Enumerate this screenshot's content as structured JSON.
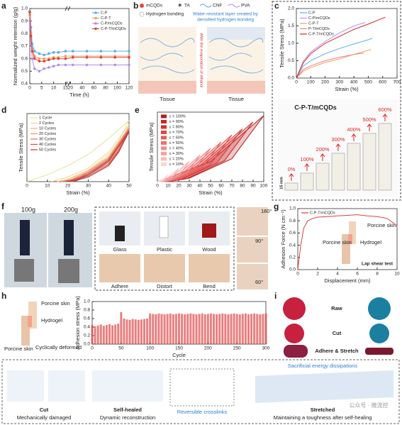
{
  "chart_data": [
    {
      "type": "line",
      "xlabel": "Time (h)",
      "ylabel": "Normalized weight retention (g/g)",
      "markers": true,
      "legend": "upper right",
      "xbreak": [
        15,
        20
      ],
      "x": [
        0,
        0.5,
        1,
        2,
        4,
        6,
        8,
        10,
        12,
        15,
        24,
        48,
        72,
        96,
        120
      ],
      "xlim": [
        0,
        120
      ],
      "xticks": [
        0,
        5,
        10,
        15,
        20,
        40,
        60,
        80,
        100,
        120
      ],
      "ylim": [
        0.4,
        1.0
      ],
      "yticks": [
        0.4,
        0.5,
        0.6,
        0.7,
        0.8,
        0.9,
        {
          "value": 1,
          "label": "1.0"
        }
      ],
      "series": [
        {
          "name": "C-P",
          "color": "#5aaee8",
          "values": [
            0.98,
            0.85,
            0.72,
            0.66,
            0.64,
            0.63,
            0.64,
            0.65,
            0.65,
            0.66,
            0.66,
            0.66,
            0.66,
            0.66,
            0.66
          ]
        },
        {
          "name": "C-P-T",
          "color": "#f0a060",
          "values": [
            0.95,
            0.8,
            0.68,
            0.62,
            0.6,
            0.6,
            0.6,
            0.61,
            0.61,
            0.62,
            0.62,
            0.62,
            0.62,
            0.62,
            0.62
          ]
        },
        {
          "name": "C-P/mCQDs",
          "color": "#b38ee6",
          "values": [
            0.9,
            0.72,
            0.6,
            0.52,
            0.5,
            0.52,
            0.53,
            0.54,
            0.55,
            0.55,
            0.55,
            0.55,
            0.55,
            0.55,
            0.55
          ]
        },
        {
          "name": "C-P-T/mCQDs",
          "color": "#e0403a",
          "values": [
            0.97,
            0.78,
            0.66,
            0.6,
            0.58,
            0.58,
            0.59,
            0.6,
            0.6,
            0.6,
            0.61,
            0.61,
            0.61,
            0.61,
            0.61
          ]
        }
      ]
    },
    {
      "type": "line",
      "xlabel": "Strain (%)",
      "ylabel": "Tensile Stress (MPa)",
      "legend": "upper left",
      "xlim": [
        0,
        700
      ],
      "xticks": [
        0,
        100,
        200,
        300,
        400,
        500,
        600,
        700
      ],
      "ylim": [
        0,
        2
      ],
      "yticks": [
        {
          "value": 0,
          "label": "0.0"
        },
        0.5,
        {
          "value": 1,
          "label": "1.0"
        },
        1.5,
        {
          "value": 2,
          "label": "2.0"
        }
      ],
      "series": [
        {
          "name": "C-P",
          "color": "#5aaee8",
          "x": [
            0,
            50,
            100,
            200,
            300,
            400,
            500,
            530
          ],
          "values": [
            0,
            0.35,
            0.5,
            0.7,
            0.85,
            0.98,
            1.1,
            1.15
          ]
        },
        {
          "name": "C-P/mCQDs",
          "color": "#c08be6",
          "x": [
            0,
            50,
            100,
            200,
            300,
            400,
            480
          ],
          "values": [
            0,
            0.5,
            0.75,
            1.05,
            1.3,
            1.5,
            1.6
          ]
        },
        {
          "name": "C-P-T",
          "color": "#f0a060",
          "x": [
            0,
            50,
            100,
            200,
            300,
            400,
            500,
            520
          ],
          "values": [
            0,
            0.2,
            0.3,
            0.45,
            0.55,
            0.68,
            0.8,
            0.82
          ]
        },
        {
          "name": "P-T/mCQDs",
          "color": "#f08080",
          "x": [
            0,
            50,
            100,
            200,
            300,
            400,
            470
          ],
          "values": [
            0,
            0.25,
            0.35,
            0.5,
            0.6,
            0.68,
            0.72
          ]
        },
        {
          "name": "C-P-T/mCQDs",
          "color": "#d62828",
          "x": [
            0,
            50,
            100,
            200,
            300,
            400,
            500,
            600,
            620
          ],
          "values": [
            0,
            0.45,
            0.7,
            1.0,
            1.2,
            1.4,
            1.55,
            1.72,
            1.75
          ]
        }
      ]
    },
    {
      "type": "line",
      "xlabel": "Strain (%)",
      "ylabel": "Tensile Stress (MPa)",
      "legend": "upper left",
      "xlim": [
        0,
        50
      ],
      "xticks": [
        0,
        10,
        20,
        30,
        40,
        50
      ],
      "ylim": [
        0,
        0.3
      ],
      "series": [
        {
          "name": "1 Cycle",
          "color": "#e6e29a",
          "x": [
            0,
            10,
            20,
            30,
            40,
            50,
            45,
            40,
            30,
            20,
            15
          ],
          "values": [
            0,
            0.03,
            0.07,
            0.12,
            0.19,
            0.27,
            0.18,
            0.12,
            0.05,
            0.01,
            0
          ]
        },
        {
          "name": "2 Cycles",
          "color": "#f5d28a",
          "x": [
            12,
            20,
            30,
            40,
            50,
            45,
            40,
            30,
            20,
            17
          ],
          "values": [
            0,
            0.02,
            0.06,
            0.13,
            0.25,
            0.16,
            0.1,
            0.04,
            0.01,
            0
          ]
        },
        {
          "name": "10 Cycles",
          "color": "#f2b27a",
          "x": [
            15,
            20,
            30,
            40,
            50,
            45,
            40,
            30,
            22,
            19
          ],
          "values": [
            0,
            0.01,
            0.05,
            0.11,
            0.24,
            0.15,
            0.09,
            0.035,
            0.01,
            0
          ]
        },
        {
          "name": "20 Cycles",
          "color": "#ec9070",
          "x": [
            17,
            22,
            30,
            40,
            50,
            45,
            40,
            30,
            23,
            20
          ],
          "values": [
            0,
            0.01,
            0.045,
            0.105,
            0.235,
            0.145,
            0.085,
            0.03,
            0.01,
            0
          ]
        },
        {
          "name": "30 Cycles",
          "color": "#e07060",
          "x": [
            18,
            23,
            30,
            40,
            50,
            45,
            40,
            30,
            24,
            21
          ],
          "values": [
            0,
            0.01,
            0.04,
            0.1,
            0.23,
            0.14,
            0.08,
            0.03,
            0.01,
            0
          ]
        },
        {
          "name": "40 Cycles",
          "color": "#cf5050",
          "x": [
            19,
            24,
            30,
            40,
            50,
            45,
            40,
            30,
            25,
            22
          ],
          "values": [
            0,
            0.01,
            0.035,
            0.095,
            0.225,
            0.135,
            0.075,
            0.025,
            0.01,
            0
          ]
        },
        {
          "name": "50 Cycles",
          "color": "#b83a3a",
          "x": [
            20,
            25,
            30,
            40,
            50,
            45,
            40,
            30,
            26,
            23
          ],
          "values": [
            0,
            0.01,
            0.03,
            0.09,
            0.22,
            0.13,
            0.07,
            0.02,
            0.01,
            0
          ]
        }
      ]
    },
    {
      "type": "line",
      "xlabel": "Strain (%)",
      "ylabel": "Tensile Stress (MPa)",
      "legend": "upper left",
      "fill": true,
      "xlim": [
        0,
        100
      ],
      "xticks": [
        0,
        10,
        20,
        30,
        40,
        50,
        60,
        70,
        80,
        90,
        100
      ],
      "ylim": [
        0,
        1
      ],
      "series": [
        {
          "name": "ε = 100%",
          "color": "#b71c1c",
          "x": [
            0,
            50,
            100,
            70,
            30,
            10
          ],
          "values": [
            0,
            0.29,
            0.95,
            0.33,
            0.05,
            0
          ]
        },
        {
          "name": "ε = 90%",
          "color": "#c62828",
          "x": [
            0,
            45,
            90,
            63,
            27,
            9
          ],
          "values": [
            0,
            0.26,
            0.86,
            0.3,
            0.04,
            0
          ]
        },
        {
          "name": "ε = 80%",
          "color": "#d32f2f",
          "x": [
            0,
            40,
            80,
            56,
            24,
            8
          ],
          "values": [
            0,
            0.23,
            0.76,
            0.27,
            0.04,
            0
          ]
        },
        {
          "name": "ε = 70%",
          "color": "#e04545",
          "x": [
            0,
            35,
            70,
            49,
            21,
            7
          ],
          "values": [
            0,
            0.2,
            0.67,
            0.23,
            0.03,
            0
          ]
        },
        {
          "name": "ε = 60%",
          "color": "#e85a5a",
          "x": [
            0,
            30,
            60,
            42,
            18,
            6
          ],
          "values": [
            0,
            0.17,
            0.57,
            0.2,
            0.03,
            0
          ]
        },
        {
          "name": "ε = 50%",
          "color": "#ef7070",
          "x": [
            0,
            25,
            50,
            35,
            15,
            5
          ],
          "values": [
            0,
            0.14,
            0.48,
            0.17,
            0.02,
            0
          ]
        },
        {
          "name": "ε = 40%",
          "color": "#f28a8a",
          "x": [
            0,
            20,
            40,
            28,
            12,
            4
          ],
          "values": [
            0,
            0.11,
            0.38,
            0.13,
            0.02,
            0
          ]
        },
        {
          "name": "ε = 30%",
          "color": "#f5a3a3",
          "x": [
            0,
            15,
            30,
            21,
            9,
            3
          ],
          "values": [
            0,
            0.09,
            0.29,
            0.1,
            0.01,
            0
          ]
        },
        {
          "name": "ε = 20%",
          "color": "#f8bcbc",
          "x": [
            0,
            10,
            20,
            14,
            6,
            2
          ],
          "values": [
            0,
            0.06,
            0.19,
            0.07,
            0.01,
            0
          ]
        },
        {
          "name": "ε = 10%",
          "color": "#fbd4d4",
          "x": [
            0,
            5,
            10,
            7,
            3,
            1
          ],
          "values": [
            0,
            0.03,
            0.1,
            0.04,
            0,
            0
          ]
        }
      ]
    },
    {
      "type": "line",
      "xlabel": "Displacement (mm)",
      "ylabel": "Adhesion Force (N cm⁻¹)",
      "legend": "upper left",
      "xlim": [
        0,
        10
      ],
      "xticks": [
        0,
        2,
        4,
        6,
        8,
        10
      ],
      "ylim": [
        0,
        1
      ],
      "yticks": [
        {
          "value": 0,
          "label": "0.0"
        },
        0.2,
        0.4,
        0.6,
        0.8,
        {
          "value": 1,
          "label": "1.0"
        }
      ],
      "series": [
        {
          "name": "C-P-T/mCQDs",
          "color": "#e0403a",
          "x": [
            0,
            0.3,
            0.6,
            1,
            1.5,
            2,
            3,
            4,
            5,
            6,
            7,
            8,
            9,
            9.5,
            10
          ],
          "values": [
            0,
            0.4,
            0.68,
            0.8,
            0.84,
            0.86,
            0.87,
            0.88,
            0.89,
            0.9,
            0.88,
            0.87,
            0.84,
            0.78,
            0.72
          ]
        }
      ]
    },
    {
      "type": "bar",
      "xlabel": "Cycle",
      "ylabel": "Adhesion stress (MPa)",
      "xlim": [
        0,
        300
      ],
      "xticks": [
        0,
        50,
        100,
        150,
        200,
        250,
        300
      ],
      "ylim": [
        0,
        1
      ],
      "yticks": [
        {
          "value": 0,
          "label": "0.0"
        },
        0.2,
        0.4,
        0.6,
        0.8,
        {
          "value": 1,
          "label": "1.0"
        }
      ],
      "x": [
        0,
        5,
        10,
        15,
        20,
        25,
        30,
        35,
        40,
        45,
        50,
        55,
        60,
        65,
        70,
        75,
        80,
        85,
        90,
        95,
        100,
        105,
        110,
        115,
        120,
        125,
        130,
        135,
        140,
        145,
        150,
        155,
        160,
        165,
        170,
        175,
        180,
        185,
        190,
        195,
        200,
        205,
        210,
        215,
        220,
        225,
        230,
        235,
        240,
        245,
        250,
        255,
        260,
        265,
        270,
        275,
        280,
        285,
        290,
        295,
        300
      ],
      "series": [
        {
          "name": "",
          "color": "#e04848",
          "values": [
            0.45,
            0.42,
            0.44,
            0.46,
            0.43,
            0.45,
            0.47,
            0.44,
            0.46,
            0.48,
            0.75,
            0.6,
            0.58,
            0.57,
            0.59,
            0.58,
            0.57,
            0.58,
            0.59,
            0.6,
            0.72,
            0.71,
            0.7,
            0.72,
            0.71,
            0.7,
            0.71,
            0.72,
            0.7,
            0.71,
            0.72,
            0.71,
            0.7,
            0.71,
            0.72,
            0.71,
            0.7,
            0.71,
            0.72,
            0.7,
            0.71,
            0.72,
            0.71,
            0.7,
            0.71,
            0.72,
            0.71,
            0.7,
            0.71,
            0.72,
            0.71,
            0.7,
            0.71,
            0.72,
            0.7,
            0.71,
            0.72,
            0.71,
            0.7,
            0.71,
            0.72
          ]
        }
      ]
    }
  ],
  "panels": {
    "letters": [
      "a",
      "b",
      "c",
      "d",
      "e",
      "f",
      "g",
      "h",
      "i"
    ],
    "b": {
      "legend": [
        "mCQDs",
        "TA",
        "CNF",
        "PVA",
        "Hydrogen bonding"
      ],
      "water_layer": [
        "Water-resistant layer created by",
        "densified hydrogen bonding"
      ],
      "arrow": "After the evaporation of ethanol",
      "tissue": [
        "Tissue",
        "Tissue"
      ]
    },
    "c_photo": {
      "title": "C-P-T/mCQDs",
      "scale": "15 mm",
      "labels": [
        "0%",
        "100%",
        "200%",
        "300%",
        "400%",
        "500%",
        "600%"
      ]
    },
    "f": {
      "weights": [
        "100g",
        "200g"
      ],
      "surfaces": [
        "Glass",
        "Plastic",
        "Wood",
        "Adhere",
        "Distort",
        "Bend"
      ],
      "angles": [
        "180°",
        "90°",
        "60°"
      ]
    },
    "g_inset": {
      "top": "Porcine skin",
      "hydrogel": "Hydrogel",
      "bottom": "Porcine skin",
      "test": "Lap shear test"
    },
    "h_inset": {
      "top": "Porcine skin",
      "hydrogel": "Hydrogel",
      "bottom": "Porcine skin",
      "motion": "Cyclically deformed"
    },
    "i": {
      "rows": [
        "Raw",
        "Cut",
        "Adhere & Stretch"
      ]
    },
    "bottom": {
      "cut": "Cut",
      "cut_sub": "Mechanically damaged",
      "healed": "Self-healed",
      "healed_sub": "Dynamic reconstruction",
      "crosslinks": "Reversible crosslinks",
      "sacrificial": "Sacrificial energy dissipations",
      "stretched": "Stretched",
      "stretched_sub": "Maintaining a toughness after self-healing"
    },
    "watermark": "公众号 · 微流控"
  }
}
